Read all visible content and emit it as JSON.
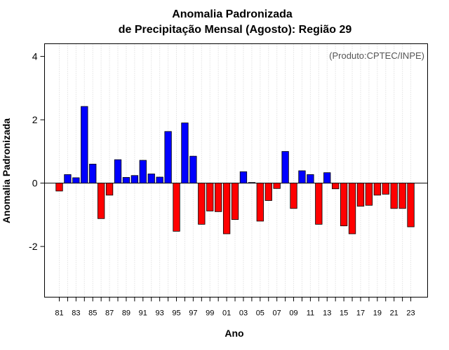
{
  "chart_data": {
    "type": "bar",
    "title_line1": "Anomalia Padronizada",
    "title_line2": "de Precipitação Mensal (Agosto): Região 29",
    "credit": "(Produto:CPTEC/INPE)",
    "xlabel": "Ano",
    "ylabel": "Anomalia Padronizada",
    "ylim": [
      -3.6,
      4.4
    ],
    "yticks": [
      -2,
      0,
      2,
      4
    ],
    "grid": true,
    "positive_color": "#0000ff",
    "negative_color": "#ff0000",
    "categories": [
      "81",
      "82",
      "83",
      "84",
      "85",
      "86",
      "87",
      "88",
      "89",
      "90",
      "91",
      "92",
      "93",
      "94",
      "95",
      "96",
      "97",
      "98",
      "99",
      "00",
      "01",
      "02",
      "03",
      "04",
      "05",
      "06",
      "07",
      "08",
      "09",
      "10",
      "11",
      "12",
      "13",
      "14",
      "15",
      "16",
      "17",
      "18",
      "19",
      "20",
      "21",
      "22",
      "23"
    ],
    "tick_labels": [
      "81",
      "83",
      "85",
      "87",
      "89",
      "91",
      "93",
      "95",
      "97",
      "99",
      "01",
      "03",
      "05",
      "07",
      "09",
      "11",
      "13",
      "15",
      "17",
      "19",
      "21",
      "23"
    ],
    "values": [
      -0.25,
      0.27,
      0.17,
      2.42,
      0.6,
      -1.12,
      -0.38,
      0.74,
      0.18,
      0.24,
      0.72,
      0.29,
      0.19,
      1.63,
      -1.52,
      1.9,
      0.85,
      -1.3,
      -0.88,
      -0.9,
      -1.6,
      -1.15,
      0.36,
      0.02,
      -1.2,
      -0.55,
      -0.17,
      1.0,
      -0.8,
      0.39,
      0.27,
      -1.3,
      0.33,
      -0.18,
      -1.35,
      -1.6,
      -0.73,
      -0.7,
      -0.38,
      -0.35,
      -0.8,
      -0.8,
      -1.38
    ]
  }
}
